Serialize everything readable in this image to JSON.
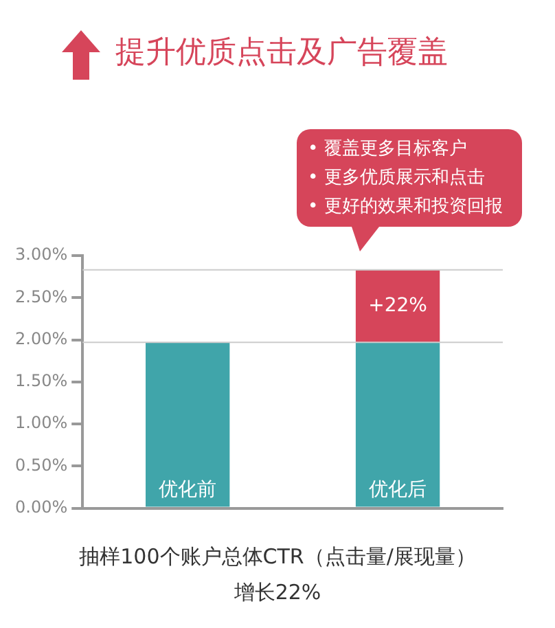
{
  "chart_data": {
    "type": "bar",
    "title": "提升优质点击及广告覆盖",
    "categories": [
      "优化前",
      "优化后"
    ],
    "stacked": true,
    "series": [
      {
        "color": "#40a5aa",
        "values": [
          1.97,
          1.97
        ]
      },
      {
        "color": "#d6455a",
        "values": [
          null,
          0.86
        ]
      }
    ],
    "ylim": [
      0,
      3
    ],
    "yticks": [
      {
        "value": 0,
        "label": "0.00%"
      },
      {
        "value": 0.5,
        "label": "0.50%"
      },
      {
        "value": 1,
        "label": "1.00%"
      },
      {
        "value": 1.5,
        "label": "1.50%"
      },
      {
        "value": 2,
        "label": "2.00%"
      },
      {
        "value": 2.5,
        "label": "2.50%"
      },
      {
        "value": 3,
        "label": "3.00%"
      }
    ],
    "ref_lines": [
      {
        "axis": "y",
        "value": 1.97,
        "color": "#cccccc"
      },
      {
        "axis": "y",
        "value": 2.83,
        "color": "#cccccc"
      }
    ],
    "grid": false,
    "legend": false,
    "annotations": [
      "+22%",
      "• 覆盖更多目标客户",
      "• 更多优质展示和点击",
      "• 更好的效果和投资回报",
      "抽样100个账户总体CTR（点击量/展现量）增长22%"
    ]
  }
}
